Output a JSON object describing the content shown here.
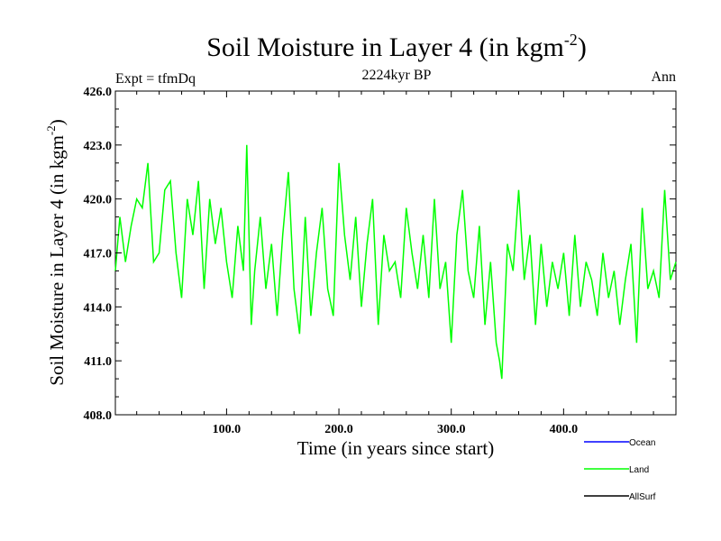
{
  "chart_data": {
    "type": "line",
    "title": "Soil Moisture in Layer 4 (in kgm",
    "title_sup": "-2",
    "title_close": ")",
    "subtitle": "2224kyr BP",
    "left_label": "Expt = tfmDq",
    "right_label": "Ann",
    "xlabel": "Time (in years since start)",
    "ylabel": "Soil Moisture in Layer 4 (in kgm",
    "ylabel_sup": "-2",
    "ylabel_close": ")",
    "xlim": [
      1,
      500
    ],
    "ylim": [
      408.0,
      426.0
    ],
    "x_ticks": [
      100,
      200,
      300,
      400
    ],
    "x_tick_labels": [
      "100.0",
      "200.0",
      "300.0",
      "400.0"
    ],
    "y_ticks": [
      408,
      411,
      414,
      417,
      420,
      423,
      426
    ],
    "y_tick_labels": [
      "408.0",
      "411.0",
      "414.0",
      "417.0",
      "420.0",
      "423.0",
      "426.0"
    ],
    "legend": [
      {
        "name": "Ocean",
        "color": "#0000ff"
      },
      {
        "name": "Land",
        "color": "#00ff00"
      },
      {
        "name": "AllSurf",
        "color": "#000000"
      }
    ],
    "series": [
      {
        "name": "Land",
        "color": "#00ff00",
        "x": [
          1,
          5,
          10,
          15,
          20,
          25,
          30,
          35,
          40,
          45,
          50,
          55,
          60,
          65,
          70,
          75,
          80,
          85,
          90,
          95,
          100,
          105,
          110,
          115,
          118,
          122,
          125,
          130,
          135,
          140,
          145,
          150,
          155,
          160,
          165,
          170,
          175,
          180,
          185,
          190,
          195,
          200,
          205,
          210,
          215,
          220,
          225,
          230,
          235,
          240,
          245,
          250,
          255,
          260,
          265,
          270,
          275,
          280,
          285,
          290,
          295,
          300,
          305,
          310,
          315,
          320,
          325,
          330,
          335,
          340,
          343,
          345,
          350,
          355,
          360,
          365,
          370,
          375,
          380,
          385,
          390,
          395,
          400,
          405,
          410,
          415,
          420,
          425,
          430,
          435,
          440,
          445,
          450,
          455,
          460,
          465,
          470,
          475,
          480,
          485,
          490,
          495,
          500
        ],
        "values": [
          416.0,
          419.0,
          416.5,
          418.5,
          420.0,
          419.5,
          422.0,
          416.5,
          417.0,
          420.5,
          421.0,
          417.0,
          414.5,
          420.0,
          418.0,
          421.0,
          415.0,
          420.0,
          417.5,
          419.5,
          416.5,
          414.5,
          418.5,
          416.0,
          423.0,
          413.0,
          416.0,
          419.0,
          415.0,
          417.5,
          413.5,
          418.0,
          421.5,
          415.0,
          412.5,
          419.0,
          413.5,
          417.0,
          419.5,
          415.0,
          413.5,
          422.0,
          418.0,
          415.5,
          419.0,
          414.0,
          417.5,
          420.0,
          413.0,
          418.0,
          416.0,
          416.5,
          414.5,
          419.5,
          417.0,
          415.0,
          418.0,
          414.5,
          420.0,
          415.0,
          416.5,
          412.0,
          418.0,
          420.5,
          416.0,
          414.5,
          418.5,
          413.0,
          416.5,
          412.0,
          411.0,
          410.0,
          417.5,
          416.0,
          420.5,
          415.5,
          418.0,
          413.0,
          417.5,
          414.0,
          416.5,
          415.0,
          417.0,
          413.5,
          418.0,
          414.0,
          416.5,
          415.5,
          413.5,
          417.0,
          414.5,
          416.0,
          413.0,
          415.5,
          417.5,
          412.0,
          419.5,
          415.0,
          416.0,
          414.5,
          420.5,
          415.5,
          416.5
        ]
      }
    ]
  }
}
